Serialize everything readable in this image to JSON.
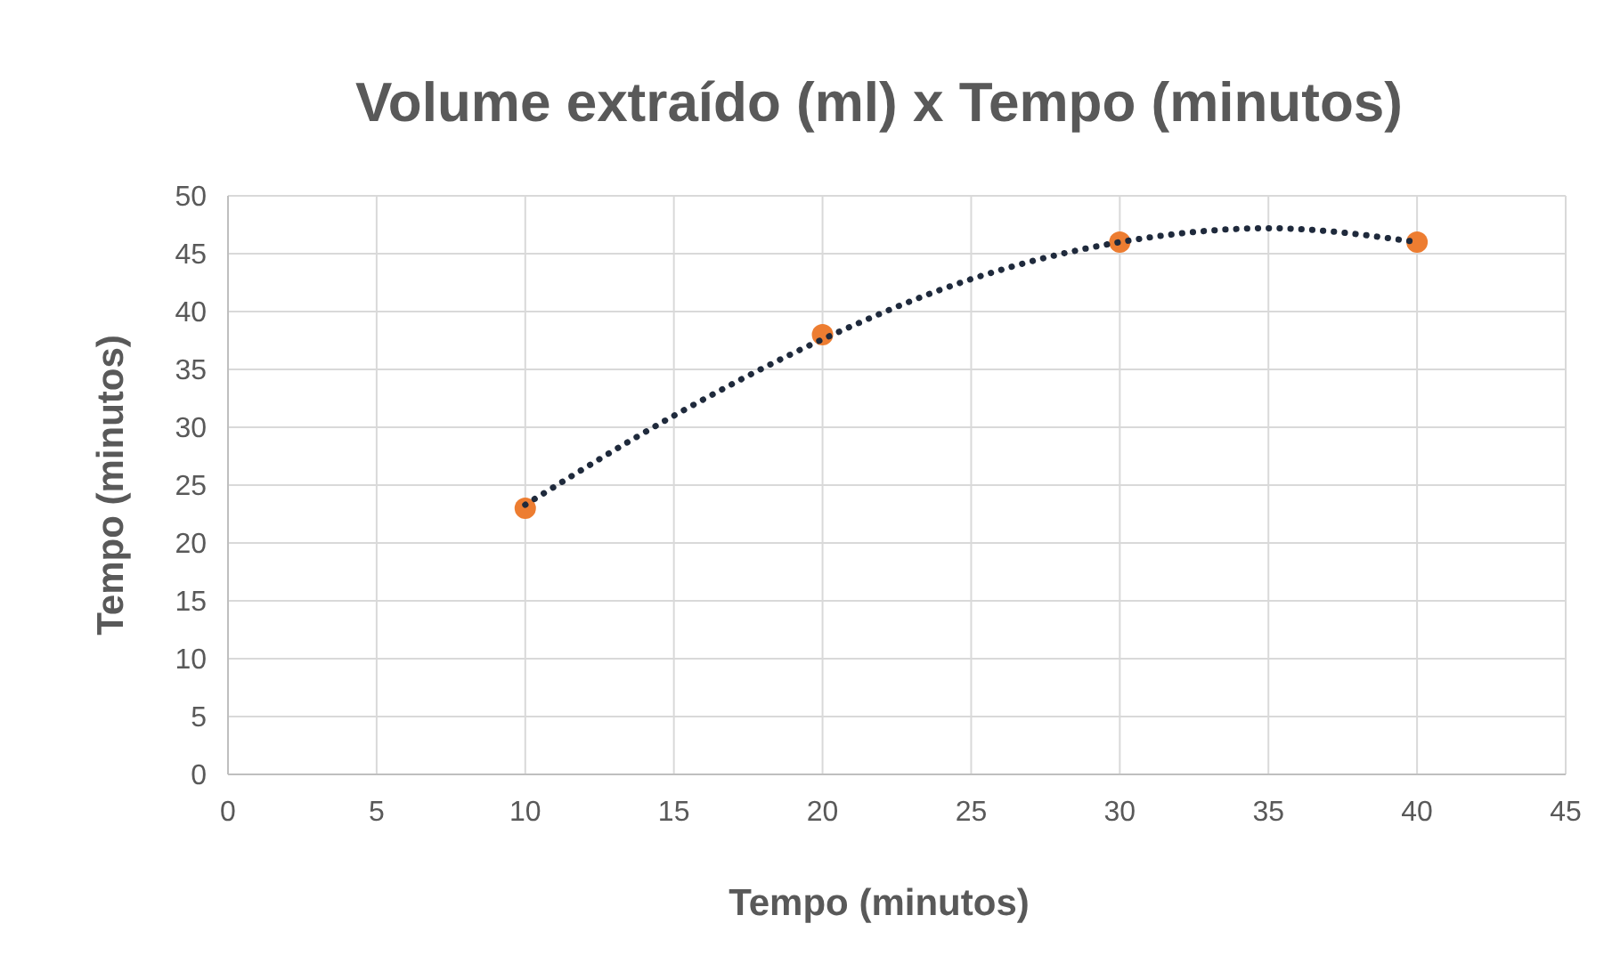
{
  "chart_data": {
    "type": "scatter",
    "title": "Volume extraído (ml) x Tempo (minutos)",
    "xlabel": "Tempo (minutos)",
    "ylabel": "Tempo (minutos)",
    "series": [
      {
        "color": "#ed7d31",
        "marker": "circle",
        "x": [
          10,
          20,
          30,
          40
        ],
        "values": [
          23,
          38,
          46,
          46
        ]
      },
      {
        "type": "line",
        "color": "#1f2a3c",
        "marker": "none",
        "line_style": "dotted",
        "x": [
          10,
          15,
          20,
          25,
          30,
          35,
          40
        ],
        "values": [
          23.3,
          31,
          37.6,
          42.8,
          46,
          47.2,
          46
        ]
      }
    ],
    "xlim": [
      0,
      45
    ],
    "xticks": [
      0,
      5,
      10,
      15,
      20,
      25,
      30,
      35,
      40,
      45
    ],
    "ylim": [
      0,
      50
    ],
    "yticks": [
      0,
      5,
      10,
      15,
      20,
      25,
      30,
      35,
      40,
      45,
      50
    ],
    "grid": true
  }
}
